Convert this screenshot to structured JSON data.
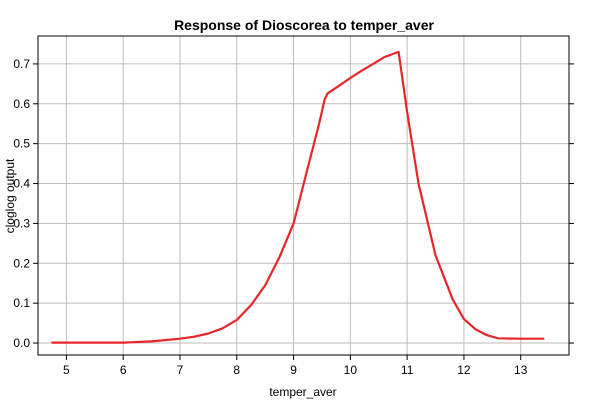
{
  "chart_data": {
    "type": "line",
    "title": "Response of Dioscorea to temper_aver",
    "xlabel": "temper_aver",
    "ylabel": "cloglog output",
    "xlim": [
      4.5,
      13.85
    ],
    "ylim": [
      -0.03,
      0.77
    ],
    "grid": true,
    "xticks": [
      5,
      6,
      7,
      8,
      9,
      10,
      11,
      12,
      13
    ],
    "xtick_labels": [
      "5",
      "6",
      "7",
      "8",
      "9",
      "10",
      "11",
      "12",
      "13"
    ],
    "yticks": [
      0.0,
      0.1,
      0.2,
      0.3,
      0.4,
      0.5,
      0.6,
      0.7
    ],
    "ytick_labels": [
      "0.0",
      "0.1",
      "0.2",
      "0.3",
      "0.4",
      "0.5",
      "0.6",
      "0.7"
    ],
    "series": [
      {
        "color": "#e8262a",
        "x": [
          4.75,
          5.0,
          5.5,
          6.0,
          6.5,
          7.0,
          7.25,
          7.5,
          7.75,
          8.0,
          8.25,
          8.5,
          8.75,
          9.0,
          9.25,
          9.45,
          9.55,
          9.6,
          9.8,
          10.0,
          10.2,
          10.4,
          10.6,
          10.85,
          11.0,
          11.2,
          11.5,
          11.8,
          12.0,
          12.2,
          12.4,
          12.6,
          13.0,
          13.4
        ],
        "y": [
          0.001,
          0.001,
          0.001,
          0.001,
          0.004,
          0.011,
          0.016,
          0.024,
          0.037,
          0.058,
          0.095,
          0.145,
          0.215,
          0.3,
          0.44,
          0.55,
          0.612,
          0.626,
          0.645,
          0.665,
          0.683,
          0.7,
          0.717,
          0.73,
          0.58,
          0.4,
          0.22,
          0.11,
          0.06,
          0.035,
          0.02,
          0.012,
          0.011,
          0.011
        ]
      }
    ]
  }
}
